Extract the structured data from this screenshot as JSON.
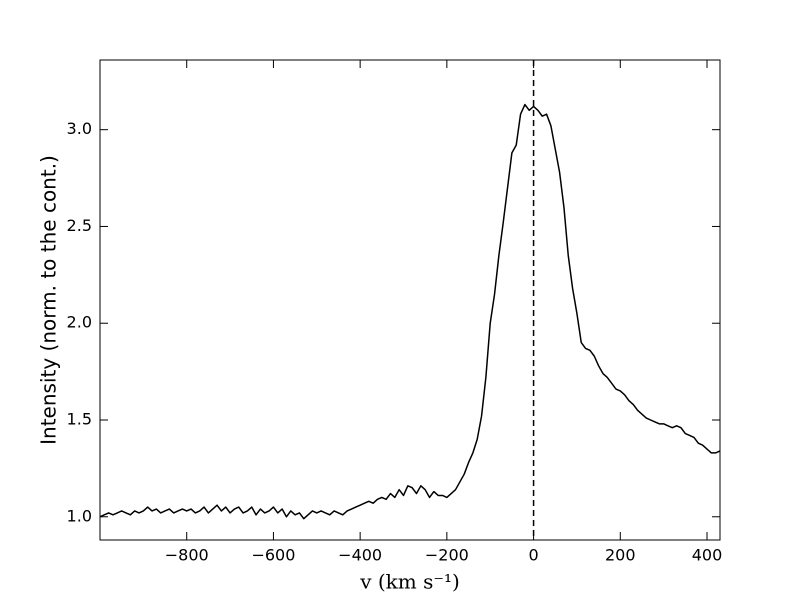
{
  "chart_data": {
    "type": "line",
    "xlabel": "v (km s⁻¹)",
    "ylabel": "Intensity (norm. to the cont.)",
    "color": "#000000",
    "vline": 0,
    "xlim": [
      -1000,
      430
    ],
    "ylim": [
      0.88,
      3.36
    ],
    "xticks": [
      {
        "value": -800,
        "label": "−800"
      },
      {
        "value": -600,
        "label": "−600"
      },
      {
        "value": -400,
        "label": "−400"
      },
      {
        "value": -200,
        "label": "−200"
      },
      0,
      200,
      400
    ],
    "yticks": [
      {
        "value": 1.0,
        "label": "1.0"
      },
      1.5,
      {
        "value": 2.0,
        "label": "2.0"
      },
      2.5,
      {
        "value": 3.0,
        "label": "3.0"
      }
    ],
    "x": [
      -1000,
      -990,
      -980,
      -970,
      -960,
      -950,
      -940,
      -930,
      -920,
      -910,
      -900,
      -890,
      -880,
      -870,
      -860,
      -850,
      -840,
      -830,
      -820,
      -810,
      -800,
      -790,
      -780,
      -770,
      -760,
      -750,
      -740,
      -730,
      -720,
      -710,
      -700,
      -690,
      -680,
      -670,
      -660,
      -650,
      -640,
      -630,
      -620,
      -610,
      -600,
      -590,
      -580,
      -570,
      -560,
      -550,
      -540,
      -530,
      -520,
      -510,
      -500,
      -490,
      -480,
      -470,
      -460,
      -450,
      -440,
      -430,
      -420,
      -410,
      -400,
      -390,
      -380,
      -370,
      -360,
      -350,
      -340,
      -330,
      -320,
      -310,
      -300,
      -290,
      -280,
      -270,
      -260,
      -250,
      -240,
      -230,
      -220,
      -210,
      -200,
      -190,
      -180,
      -170,
      -160,
      -150,
      -140,
      -130,
      -120,
      -110,
      -100,
      -90,
      -80,
      -70,
      -60,
      -50,
      -40,
      -30,
      -20,
      -10,
      0,
      10,
      20,
      30,
      40,
      50,
      60,
      70,
      80,
      90,
      100,
      110,
      120,
      130,
      140,
      150,
      160,
      170,
      180,
      190,
      200,
      210,
      220,
      230,
      240,
      250,
      260,
      270,
      280,
      290,
      300,
      310,
      320,
      330,
      340,
      350,
      360,
      370,
      380,
      390,
      400,
      410,
      420,
      430
    ],
    "values": [
      1.0,
      1.01,
      1.02,
      1.01,
      1.02,
      1.03,
      1.02,
      1.01,
      1.03,
      1.02,
      1.03,
      1.05,
      1.03,
      1.04,
      1.02,
      1.03,
      1.04,
      1.02,
      1.03,
      1.04,
      1.03,
      1.04,
      1.02,
      1.03,
      1.05,
      1.02,
      1.04,
      1.06,
      1.03,
      1.05,
      1.02,
      1.04,
      1.05,
      1.02,
      1.03,
      1.05,
      1.01,
      1.04,
      1.02,
      1.03,
      1.05,
      1.02,
      1.04,
      1.0,
      1.03,
      1.01,
      1.02,
      0.99,
      1.01,
      1.03,
      1.02,
      1.03,
      1.02,
      1.01,
      1.03,
      1.02,
      1.01,
      1.03,
      1.04,
      1.05,
      1.06,
      1.07,
      1.08,
      1.07,
      1.09,
      1.1,
      1.09,
      1.12,
      1.1,
      1.14,
      1.11,
      1.16,
      1.15,
      1.12,
      1.16,
      1.14,
      1.1,
      1.13,
      1.11,
      1.11,
      1.1,
      1.12,
      1.14,
      1.18,
      1.22,
      1.28,
      1.33,
      1.4,
      1.52,
      1.72,
      2.0,
      2.15,
      2.35,
      2.52,
      2.7,
      2.88,
      2.92,
      3.08,
      3.13,
      3.1,
      3.12,
      3.1,
      3.07,
      3.08,
      3.02,
      2.9,
      2.78,
      2.6,
      2.35,
      2.18,
      2.05,
      1.9,
      1.87,
      1.86,
      1.83,
      1.78,
      1.74,
      1.72,
      1.69,
      1.66,
      1.65,
      1.63,
      1.6,
      1.58,
      1.55,
      1.53,
      1.51,
      1.5,
      1.49,
      1.48,
      1.48,
      1.47,
      1.46,
      1.47,
      1.46,
      1.43,
      1.42,
      1.41,
      1.38,
      1.37,
      1.35,
      1.33,
      1.33,
      1.34
    ]
  }
}
